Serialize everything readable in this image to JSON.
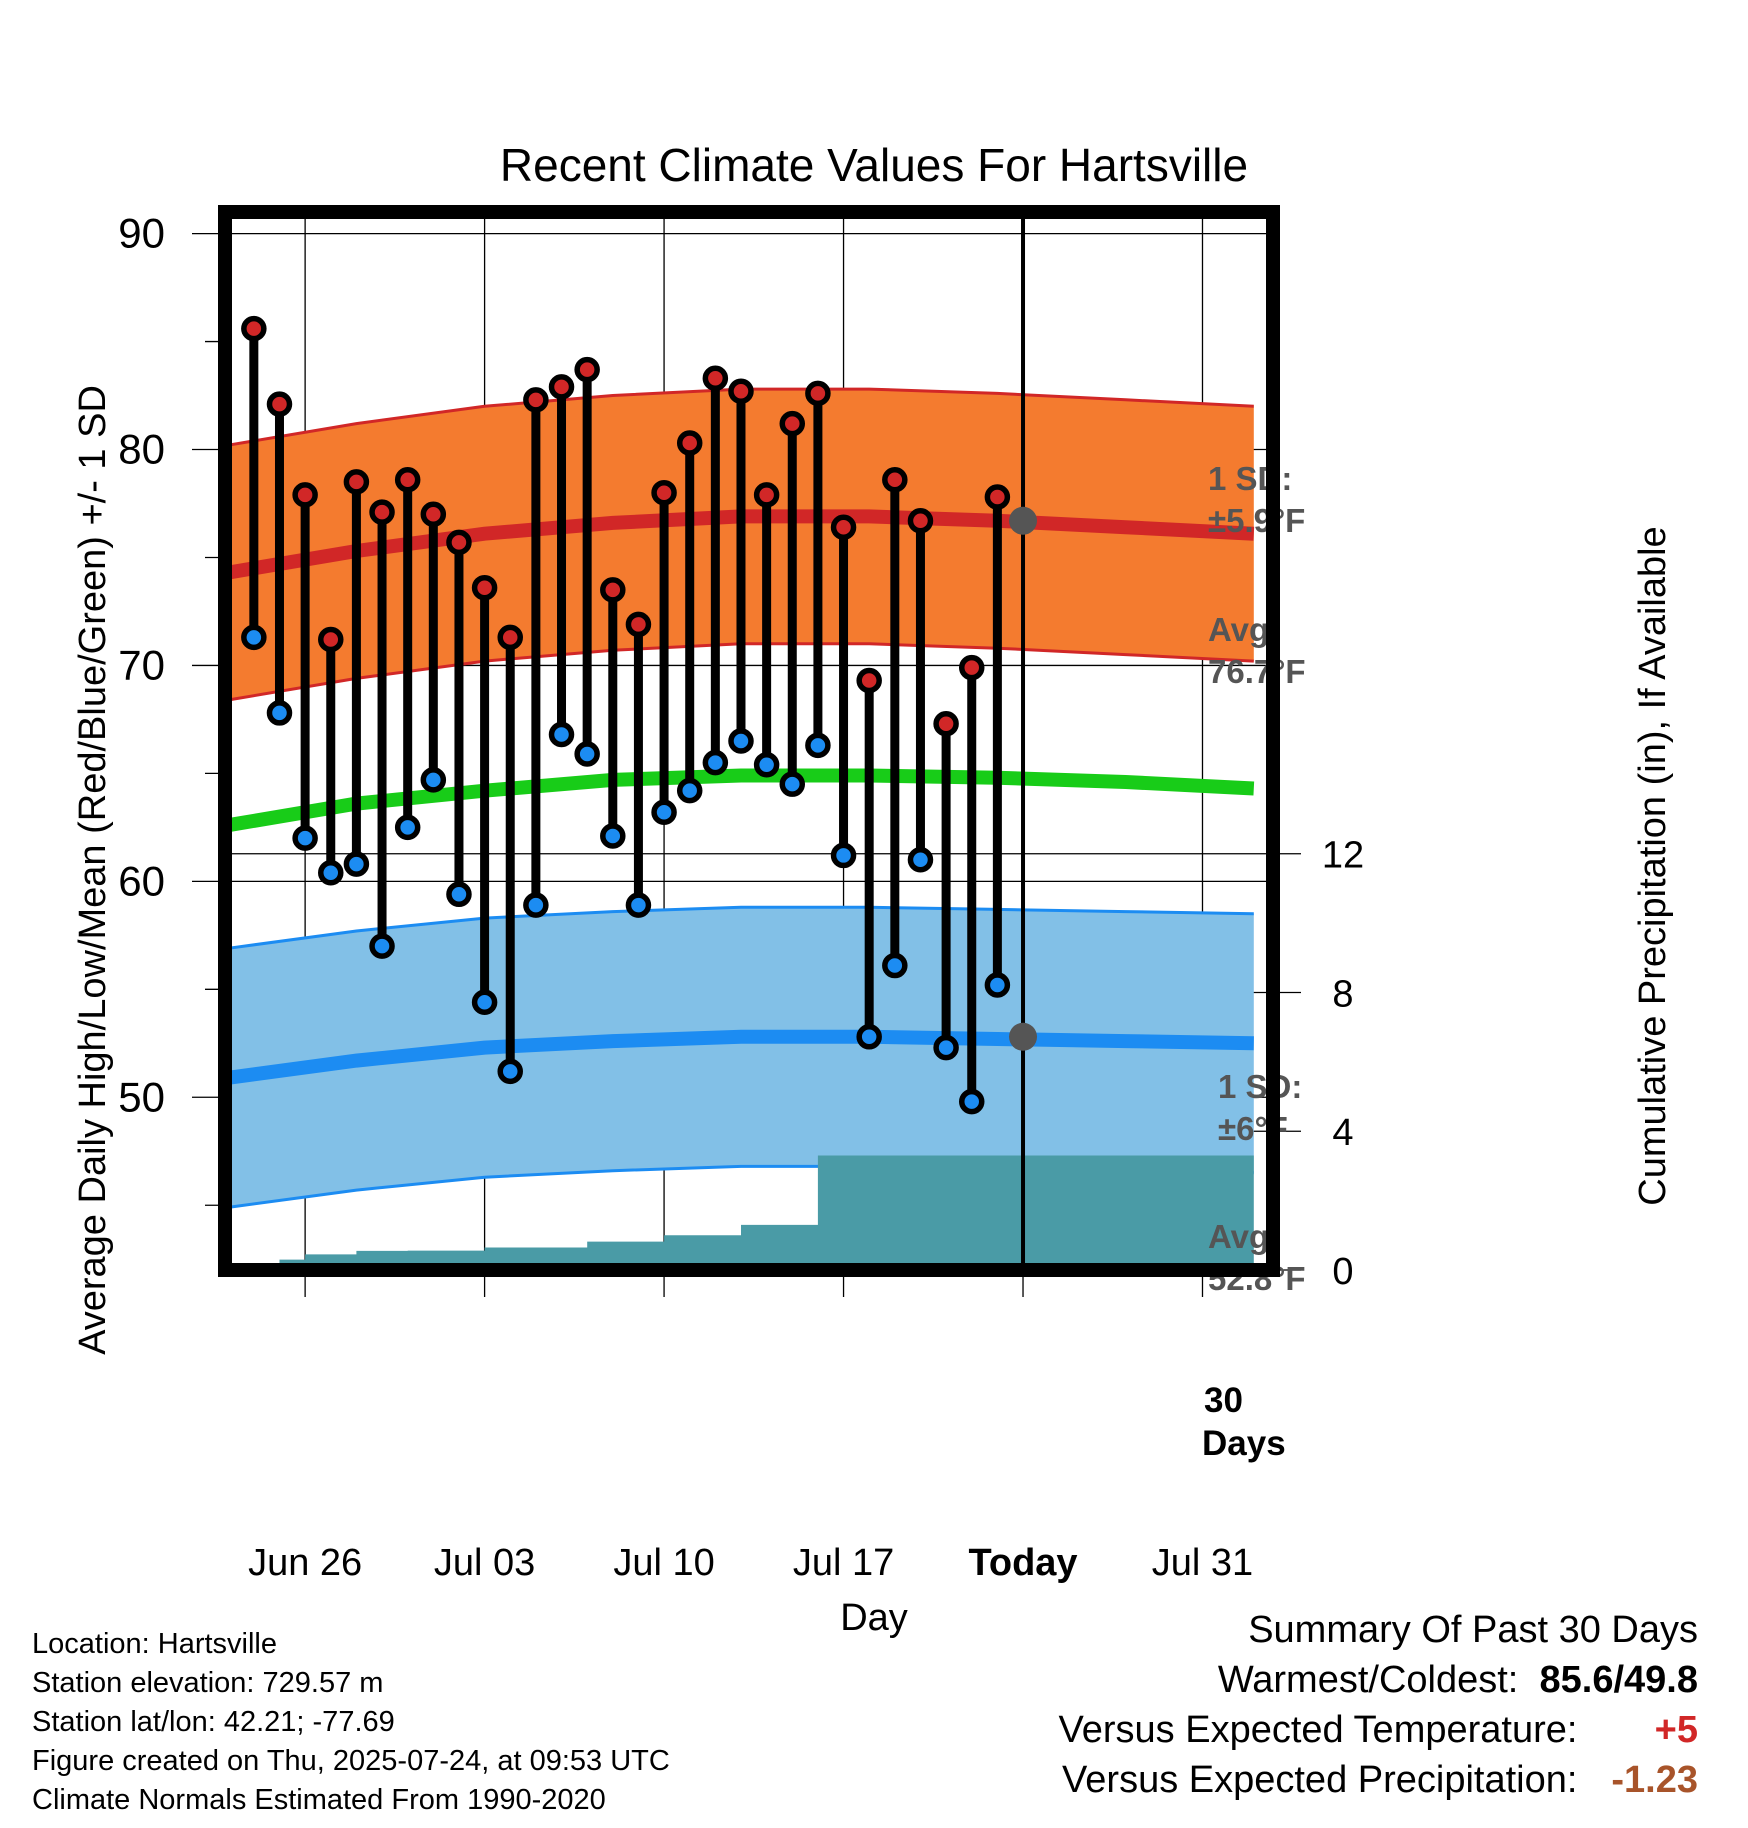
{
  "chart_data": {
    "type": "line",
    "title": "Recent Climate Values For Hartsville",
    "xlabel": "Day",
    "ylabel": "Average Daily High/Low/Mean (Red/Blue/Green) +/- 1 SD",
    "y2label": "Cumulative Precipitation (in), If Available",
    "ylim": [
      42,
      91
    ],
    "y_ticks": [
      50,
      60,
      70,
      80,
      90
    ],
    "y2lim": [
      0,
      30.5
    ],
    "y2_ticks": [
      0,
      4,
      8,
      12
    ],
    "x_ticks": [
      "Jun 26",
      "Jul 03",
      "Jul 10",
      "Jul 17",
      "Today",
      "Jul 31"
    ],
    "x_tick_dates": [
      "2025-06-26",
      "2025-07-03",
      "2025-07-10",
      "2025-07-17",
      "2025-07-24",
      "2025-07-31"
    ],
    "xlim": [
      "2025-06-22T21:00",
      "2025-08-02T18:00"
    ],
    "today": "2025-07-24",
    "grid": true,
    "daily": {
      "dates": [
        "2025-06-24",
        "2025-06-25",
        "2025-06-26",
        "2025-06-27",
        "2025-06-28",
        "2025-06-29",
        "2025-06-30",
        "2025-07-01",
        "2025-07-02",
        "2025-07-03",
        "2025-07-04",
        "2025-07-05",
        "2025-07-06",
        "2025-07-07",
        "2025-07-08",
        "2025-07-09",
        "2025-07-10",
        "2025-07-11",
        "2025-07-12",
        "2025-07-13",
        "2025-07-14",
        "2025-07-15",
        "2025-07-16",
        "2025-07-17",
        "2025-07-18",
        "2025-07-19",
        "2025-07-20",
        "2025-07-21",
        "2025-07-22",
        "2025-07-23"
      ],
      "high": [
        85.6,
        82.1,
        77.9,
        71.2,
        78.5,
        77.1,
        78.6,
        77.0,
        75.7,
        73.6,
        71.3,
        82.3,
        82.9,
        83.7,
        73.5,
        71.9,
        78.0,
        80.3,
        83.3,
        82.7,
        77.9,
        81.2,
        82.6,
        76.4,
        69.3,
        78.6,
        76.7,
        67.3,
        69.9,
        77.8
      ],
      "low": [
        71.3,
        67.8,
        62.0,
        60.4,
        60.8,
        57.0,
        62.5,
        64.7,
        59.4,
        54.4,
        51.2,
        58.9,
        66.8,
        65.9,
        62.1,
        58.9,
        63.2,
        64.2,
        65.5,
        66.5,
        65.4,
        64.5,
        66.3,
        61.2,
        52.8,
        56.1,
        61.0,
        52.3,
        49.8,
        55.2
      ]
    },
    "normals": {
      "dates": [
        "2025-06-23",
        "2025-06-28",
        "2025-07-03",
        "2025-07-08",
        "2025-07-13",
        "2025-07-18",
        "2025-07-23",
        "2025-07-28",
        "2025-08-02"
      ],
      "avg_high": [
        74.3,
        75.3,
        76.1,
        76.6,
        76.9,
        76.9,
        76.7,
        76.4,
        76.1
      ],
      "high_sd": 5.9,
      "avg_low": [
        50.9,
        51.7,
        52.3,
        52.6,
        52.8,
        52.8,
        52.7,
        52.6,
        52.5
      ],
      "low_sd": 6,
      "mean": [
        62.6,
        63.6,
        64.2,
        64.7,
        64.9,
        64.9,
        64.8,
        64.6,
        64.3
      ]
    },
    "precipitation": {
      "dates": [
        "2025-06-24",
        "2025-06-25",
        "2025-06-26",
        "2025-06-27",
        "2025-06-28",
        "2025-06-29",
        "2025-06-30",
        "2025-07-01",
        "2025-07-02",
        "2025-07-03",
        "2025-07-04",
        "2025-07-05",
        "2025-07-06",
        "2025-07-07",
        "2025-07-08",
        "2025-07-09",
        "2025-07-10",
        "2025-07-11",
        "2025-07-12",
        "2025-07-13",
        "2025-07-14",
        "2025-07-15",
        "2025-07-16",
        "2025-07-17",
        "2025-07-18",
        "2025-07-19",
        "2025-07-20",
        "2025-07-21",
        "2025-07-22",
        "2025-07-23",
        "2025-08-02"
      ],
      "cumulative": [
        0.0,
        0.3,
        0.45,
        0.45,
        0.55,
        0.55,
        0.56,
        0.56,
        0.56,
        0.65,
        0.65,
        0.65,
        0.65,
        0.82,
        0.82,
        0.82,
        1.0,
        1.0,
        1.0,
        1.3,
        1.3,
        1.3,
        3.3,
        3.3,
        3.3,
        3.3,
        3.3,
        3.3,
        3.3,
        3.3,
        3.3
      ]
    },
    "annotations": {
      "high_sd": {
        "label": "1 SD:",
        "value": "±5.9°F"
      },
      "high_avg": {
        "label": "Avg:",
        "value": "76.7°F"
      },
      "low_sd": {
        "label": "1 SD:",
        "value": "±6°F"
      },
      "low_avg": {
        "label": "Avg:",
        "value": "52.8°F"
      },
      "days_line1": "30",
      "days_line2": "Days"
    },
    "colors": {
      "high_band": "#f47b2f",
      "high_line": "#d12727",
      "low_band": "#82c0e7",
      "low_line": "#1c8cf2",
      "mean_line": "#18cc18",
      "precip": "#4a9ba6",
      "high_dot": "#d12727",
      "low_dot": "#1c8cf2",
      "annotation": "#555555",
      "positive": "#d12727",
      "negative": "#a8542a"
    }
  },
  "info": {
    "location": "Location: Hartsville",
    "elevation": "Station elevation: 729.57 m",
    "latlon": "Station lat/lon: 42.21; -77.69",
    "created": "Figure created on Thu, 2025-07-24, at 09:53 UTC",
    "normals": "Climate Normals Estimated From 1990-2020"
  },
  "summary": {
    "heading": "Summary Of Past 30 Days",
    "warm_cold_label": "Warmest/Coldest:",
    "warmest": "85.6",
    "sep": "/",
    "coldest": "49.8",
    "temp_label": "Versus Expected Temperature:",
    "temp_value": "+5",
    "precip_label": "Versus Expected Precipitation:",
    "precip_value": "-1.23"
  }
}
